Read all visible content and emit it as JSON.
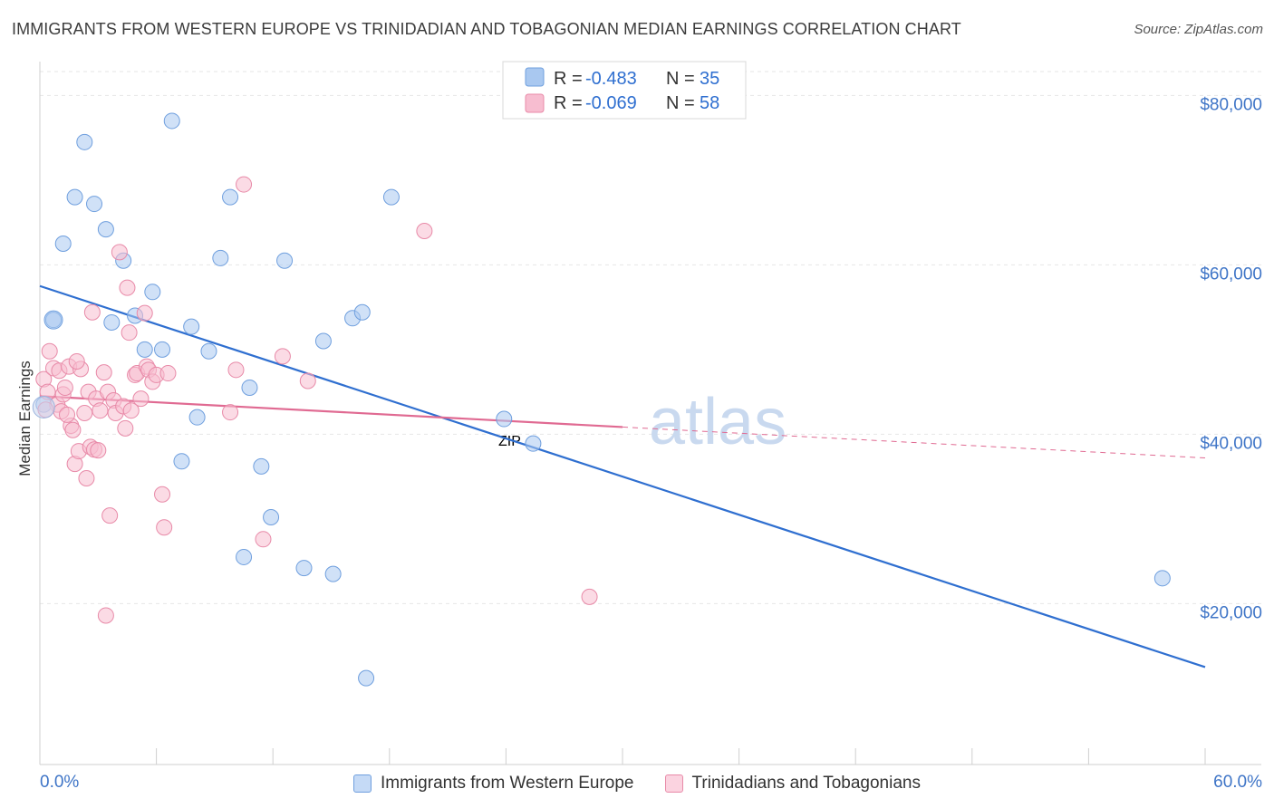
{
  "title": "IMMIGRANTS FROM WESTERN EUROPE VS TRINIDADIAN AND TOBAGONIAN MEDIAN EARNINGS CORRELATION CHART",
  "source": "Source: ZipAtlas.com",
  "watermark": {
    "zip": "ZIP",
    "atlas": "atlas"
  },
  "legend_top": [
    {
      "r_label": "R = ",
      "r_value": "-0.483",
      "n_label": "N = ",
      "n_value": "35",
      "color": "#a9c8f0",
      "stroke": "#6f9fde"
    },
    {
      "r_label": "R = ",
      "r_value": "-0.069",
      "n_label": "N = ",
      "n_value": "58",
      "color": "#f7bdd0",
      "stroke": "#e88aa8"
    }
  ],
  "chart_data": {
    "type": "scatter",
    "title": "IMMIGRANTS FROM WESTERN EUROPE VS TRINIDADIAN AND TOBAGONIAN MEDIAN EARNINGS CORRELATION CHART",
    "xlabel": "",
    "ylabel": "Median Earnings",
    "xlim": [
      0,
      60
    ],
    "ylim": [
      1000,
      84000
    ],
    "x_tick_labels": [
      "0.0%",
      "60.0%"
    ],
    "y_ticks": [
      20000,
      40000,
      60000,
      80000
    ],
    "y_tick_labels": [
      "$20,000",
      "$40,000",
      "$60,000",
      "$80,000"
    ],
    "grid": true,
    "legend_position": "bottom",
    "series": [
      {
        "name": "Immigrants from Western Europe",
        "color": "#a9c8f0",
        "stroke": "#6f9fde",
        "trend_color": "#2f6fd0",
        "trend": {
          "x0": 0,
          "y0": 57500,
          "x1": 60,
          "y1": 12500,
          "dashed_from": null
        },
        "points": [
          [
            0.2,
            43500
          ],
          [
            0.7,
            53500
          ],
          [
            1.2,
            62500
          ],
          [
            1.8,
            68000
          ],
          [
            2.3,
            74500
          ],
          [
            2.8,
            67200
          ],
          [
            3.4,
            64200
          ],
          [
            3.7,
            53200
          ],
          [
            4.3,
            60500
          ],
          [
            4.9,
            54000
          ],
          [
            5.4,
            50000
          ],
          [
            5.8,
            56800
          ],
          [
            6.3,
            50000
          ],
          [
            6.8,
            77000
          ],
          [
            7.8,
            52700
          ],
          [
            8.1,
            42000
          ],
          [
            7.3,
            36800
          ],
          [
            8.7,
            49800
          ],
          [
            9.3,
            60800
          ],
          [
            9.8,
            68000
          ],
          [
            10.5,
            25500
          ],
          [
            10.8,
            45500
          ],
          [
            11.4,
            36200
          ],
          [
            11.9,
            30200
          ],
          [
            12.6,
            60500
          ],
          [
            13.6,
            24200
          ],
          [
            14.6,
            51000
          ],
          [
            15.1,
            23500
          ],
          [
            16.1,
            53700
          ],
          [
            16.6,
            54400
          ],
          [
            16.8,
            11200
          ],
          [
            18.1,
            68000
          ],
          [
            23.9,
            41800
          ],
          [
            25.4,
            38900
          ],
          [
            57.8,
            23000
          ]
        ]
      },
      {
        "name": "Trinidadians and Tobagonians",
        "color": "#f7bdd0",
        "stroke": "#e88aa8",
        "trend_color": "#e06a92",
        "trend": {
          "x0": 0,
          "y0": 44500,
          "x1": 60,
          "y1": 37200,
          "dashed_from": 30
        },
        "points": [
          [
            0.2,
            46500
          ],
          [
            0.4,
            45000
          ],
          [
            0.5,
            49800
          ],
          [
            0.7,
            47800
          ],
          [
            0.9,
            43500
          ],
          [
            1.0,
            47500
          ],
          [
            1.1,
            42700
          ],
          [
            1.2,
            44700
          ],
          [
            1.3,
            45500
          ],
          [
            1.5,
            48000
          ],
          [
            1.6,
            41000
          ],
          [
            1.7,
            40500
          ],
          [
            1.8,
            36500
          ],
          [
            2.0,
            38000
          ],
          [
            2.1,
            47700
          ],
          [
            2.3,
            42500
          ],
          [
            2.4,
            34800
          ],
          [
            2.5,
            45000
          ],
          [
            2.6,
            38500
          ],
          [
            2.7,
            54400
          ],
          [
            2.8,
            38200
          ],
          [
            2.9,
            44200
          ],
          [
            3.1,
            42800
          ],
          [
            3.3,
            47300
          ],
          [
            3.5,
            45000
          ],
          [
            3.6,
            30400
          ],
          [
            3.4,
            18600
          ],
          [
            3.8,
            44000
          ],
          [
            3.9,
            42500
          ],
          [
            4.1,
            61500
          ],
          [
            4.3,
            43300
          ],
          [
            4.4,
            40700
          ],
          [
            4.5,
            57300
          ],
          [
            4.6,
            52000
          ],
          [
            4.7,
            42800
          ],
          [
            4.9,
            47000
          ],
          [
            5.0,
            47200
          ],
          [
            5.2,
            44200
          ],
          [
            5.4,
            54300
          ],
          [
            5.5,
            48000
          ],
          [
            5.6,
            47600
          ],
          [
            5.8,
            46200
          ],
          [
            6.0,
            47000
          ],
          [
            6.3,
            32900
          ],
          [
            6.4,
            29000
          ],
          [
            6.6,
            47200
          ],
          [
            9.8,
            42600
          ],
          [
            10.1,
            47600
          ],
          [
            10.5,
            69500
          ],
          [
            11.5,
            27600
          ],
          [
            12.5,
            49200
          ],
          [
            13.8,
            46300
          ],
          [
            19.8,
            64000
          ],
          [
            28.3,
            20800
          ],
          [
            0.3,
            42900
          ],
          [
            1.4,
            42300
          ],
          [
            1.9,
            48600
          ],
          [
            3.0,
            38100
          ]
        ]
      }
    ]
  }
}
